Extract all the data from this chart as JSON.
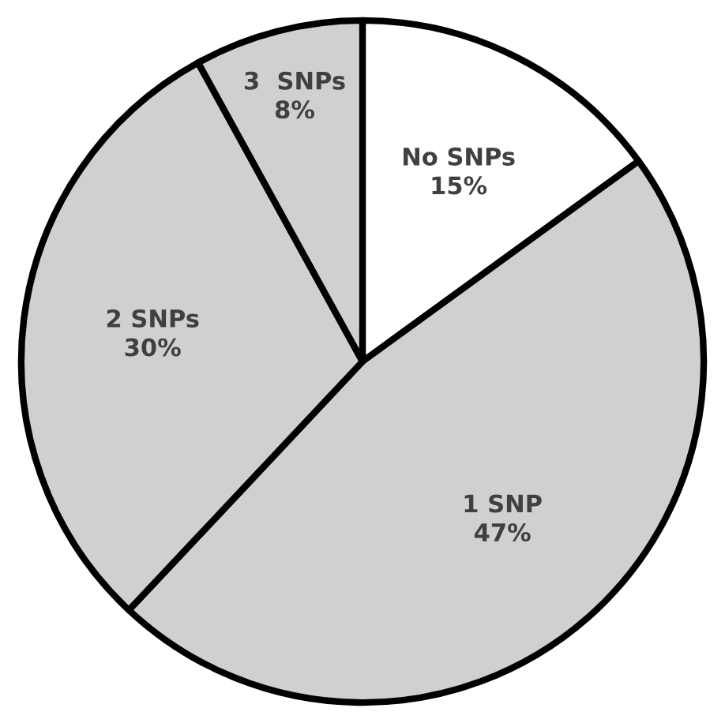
{
  "chart_data": {
    "type": "pie",
    "categories": [
      "No SNPs",
      "1 SNP",
      "2 SNPs",
      "3  SNPs"
    ],
    "values": [
      15,
      47,
      30,
      8
    ],
    "value_labels": [
      "15%",
      "47%",
      "30%",
      "8%"
    ],
    "colors": [
      "#ffffff",
      "#d0d0d0",
      "#d0d0d0",
      "#d0d0d0"
    ]
  }
}
